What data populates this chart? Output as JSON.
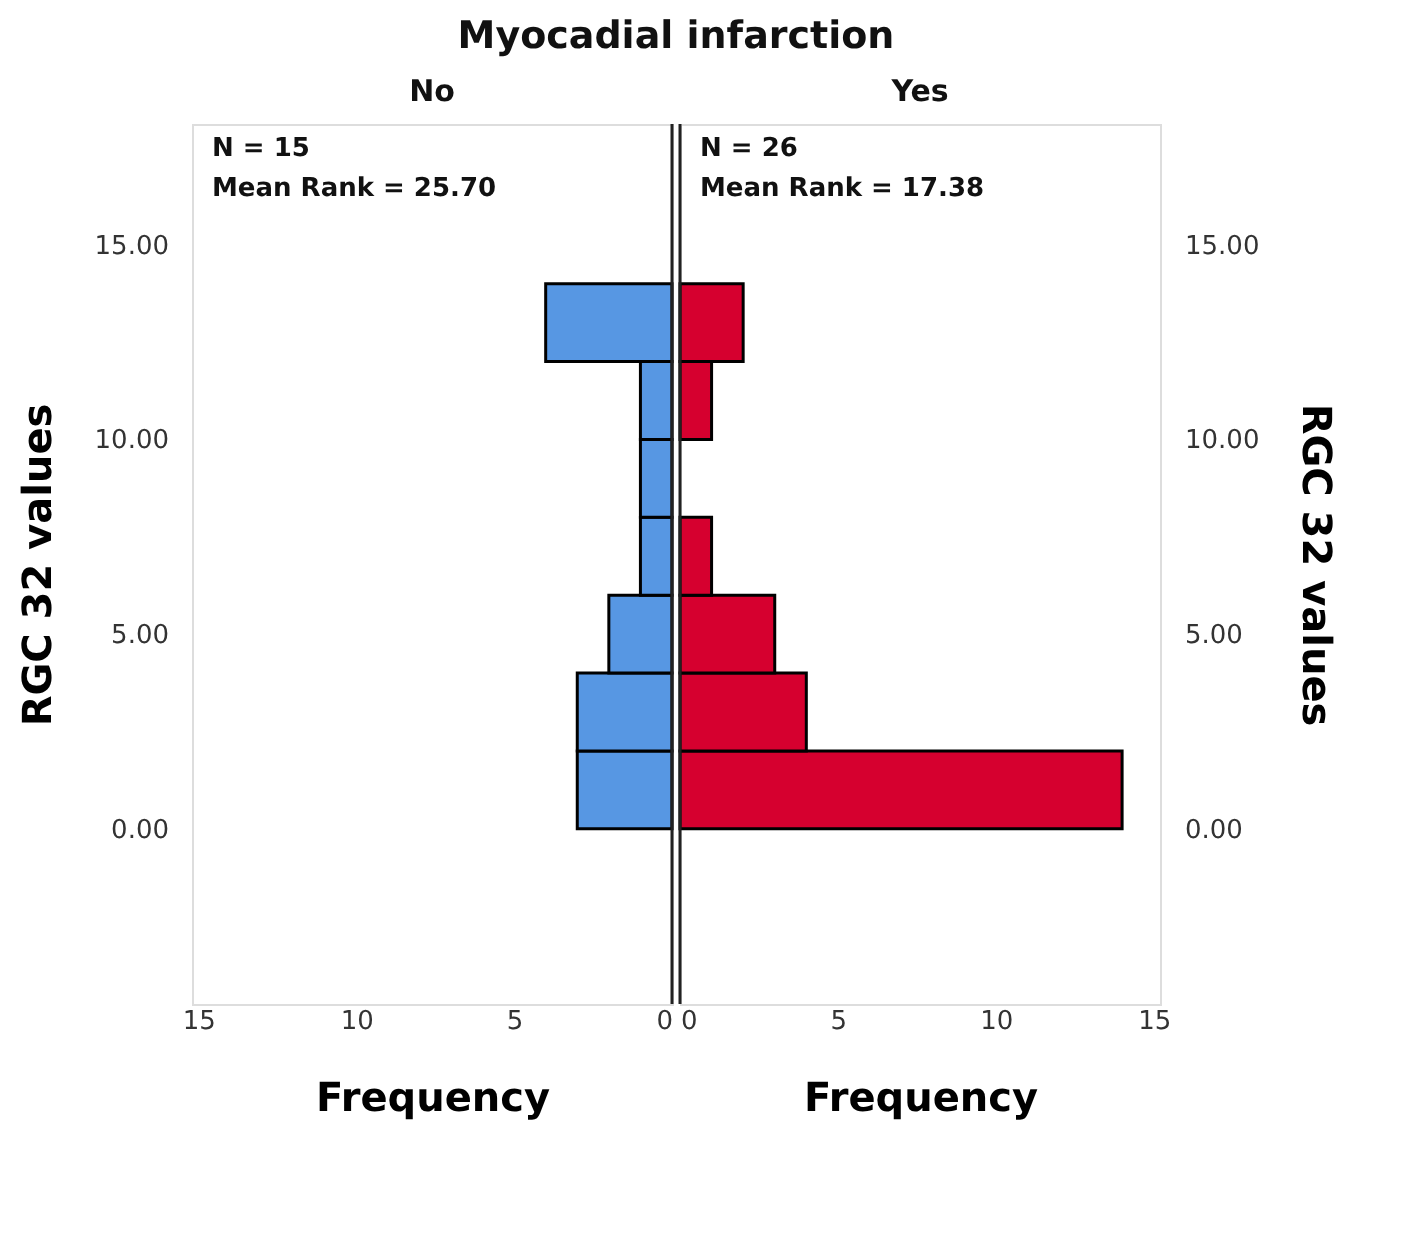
{
  "chart_data": [
    {
      "type": "histogram",
      "orientation": "horizontal",
      "title": "Myocadial infarction",
      "subtitle": "No",
      "xlabel": "Frequency",
      "ylabel": "RGC 32 values",
      "bins": [
        0,
        2,
        4,
        6,
        8,
        10,
        12,
        14
      ],
      "values": [
        3,
        3,
        2,
        1,
        1,
        1,
        4
      ],
      "color": "#5797e3",
      "xlim": [
        15.2,
        0
      ],
      "xticks": [
        15,
        10,
        5,
        0
      ],
      "ylim": [
        -4.5,
        18.1
      ],
      "yticks": [
        {
          "value": 0,
          "label": "0.00"
        },
        {
          "value": 5,
          "label": "5.00"
        },
        {
          "value": 10,
          "label": "10.00"
        },
        {
          "value": 15,
          "label": "15.00"
        }
      ],
      "annotations": [
        "N = 15",
        "Mean Rank = 25.70"
      ],
      "grid": false
    },
    {
      "type": "histogram",
      "orientation": "horizontal",
      "subtitle": "Yes",
      "xlabel": "Frequency",
      "ylabel": "RGC 32 values",
      "bins": [
        0,
        2,
        4,
        6,
        8,
        10,
        12,
        14
      ],
      "values": [
        14,
        4,
        3,
        1,
        0,
        1,
        2
      ],
      "color": "#d6002f",
      "xlim": [
        0,
        15.2
      ],
      "xticks": [
        0,
        5,
        10,
        15
      ],
      "ylim": [
        -4.5,
        18.1
      ],
      "yticks": [
        {
          "value": 0,
          "label": "0.00"
        },
        {
          "value": 5,
          "label": "5.00"
        },
        {
          "value": 10,
          "label": "10.00"
        },
        {
          "value": 15,
          "label": "15.00"
        }
      ],
      "annotations": [
        "N = 26",
        "Mean Rank = 17.38"
      ],
      "grid": false
    }
  ]
}
